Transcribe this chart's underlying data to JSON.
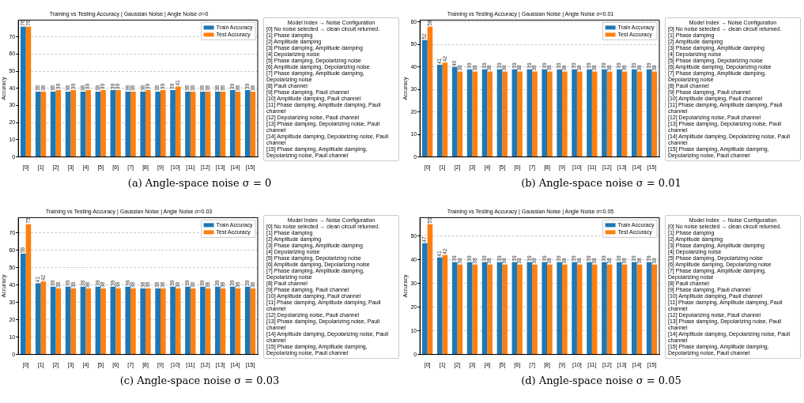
{
  "chart_data": [
    {
      "type": "bar",
      "title": "Training vs Testing Accuracy | Gaussian Noise | Angle Noise σ=0",
      "subtitle": "(a) Angle-space noise σ = 0",
      "ylabel": "Accuracy",
      "categories": [
        "[0]",
        "[1]",
        "[2]",
        "[3]",
        "[4]",
        "[5]",
        "[6]",
        "[7]",
        "[8]",
        "[9]",
        "[10]",
        "[11]",
        "[12]",
        "[13]",
        "[14]",
        "[15]"
      ],
      "series": [
        {
          "name": "Train Accuracy",
          "color": "#1f77b4",
          "values": [
            76,
            38,
            38,
            38,
            38,
            38,
            39,
            38,
            38,
            38,
            39,
            38,
            38,
            38,
            39,
            39
          ]
        },
        {
          "name": "Test Accuracy",
          "color": "#ff7f0e",
          "values": [
            76,
            38,
            39,
            39,
            39,
            39,
            39,
            38,
            39,
            39,
            41,
            38,
            38,
            38,
            38,
            38
          ]
        }
      ],
      "ylim": [
        0,
        79.8
      ],
      "yticks": [
        0,
        10,
        20,
        30,
        40,
        50,
        60,
        70
      ],
      "grid": "y",
      "legend": "top right",
      "data_labels": true,
      "annotations": [
        "Model Index → Noise Configuration",
        "[0] No noise selected → clean circuit returned.",
        "[1] Phase damping",
        "[2] Amplitude damping",
        "[3] Phase damping, Amplitude damping",
        "[4] Depolarizing noise",
        "[5] Phase damping, Depolarizing noise",
        "[6] Amplitude damping, Depolarizing noise",
        "[7] Phase damping, Amplitude damping, Depolarizing noise",
        "[8] Pauli channel",
        "[9] Phase damping, Pauli channel",
        "[10] Amplitude damping, Pauli channel",
        "[11] Phase damping, Amplitude damping, Pauli channel",
        "[12] Depolarizing noise, Pauli channel",
        "[13] Phase damping, Depolarizing noise, Pauli channel",
        "[14] Amplitude damping, Depolarizing noise, Pauli channel",
        "[15] Phase damping, Amplitude damping, Depolarizing noise, Pauli channel"
      ]
    },
    {
      "type": "bar",
      "title": "Training vs Testing Accuracy | Gaussian Noise | Angle Noise σ=0.01",
      "subtitle": "(b) Angle-space noise σ = 0.01",
      "ylabel": "Accuracy",
      "categories": [
        "[0]",
        "[1]",
        "[2]",
        "[3]",
        "[4]",
        "[5]",
        "[6]",
        "[7]",
        "[8]",
        "[9]",
        "[10]",
        "[11]",
        "[12]",
        "[13]",
        "[14]",
        "[15]"
      ],
      "series": [
        {
          "name": "Train Accuracy",
          "color": "#1f77b4",
          "values": [
            52,
            41,
            40,
            39,
            39,
            39,
            39,
            39,
            39,
            39,
            39,
            39,
            39,
            39,
            39,
            39
          ]
        },
        {
          "name": "Test Accuracy",
          "color": "#ff7f0e",
          "values": [
            58,
            42,
            38,
            38,
            38,
            38,
            38,
            38,
            38,
            38,
            38,
            38,
            38,
            38,
            38,
            38
          ]
        }
      ],
      "ylim": [
        0,
        60.9
      ],
      "yticks": [
        0,
        10,
        20,
        30,
        40,
        50,
        60
      ],
      "grid": "y",
      "legend": "top right",
      "data_labels": true,
      "annotations": [
        "Model Index → Noise Configuration",
        "[0] No noise selected → clean circuit returned.",
        "[1] Phase damping",
        "[2] Amplitude damping",
        "[3] Phase damping, Amplitude damping",
        "[4] Depolarizing noise",
        "[5] Phase damping, Depolarizing noise",
        "[6] Amplitude damping, Depolarizing noise",
        "[7] Phase damping, Amplitude damping, Depolarizing noise",
        "[8] Pauli channel",
        "[9] Phase damping, Pauli channel",
        "[10] Amplitude damping, Pauli channel",
        "[11] Phase damping, Amplitude damping, Pauli channel",
        "[12] Depolarizing noise, Pauli channel",
        "[13] Phase damping, Depolarizing noise, Pauli channel",
        "[14] Amplitude damping, Depolarizing noise, Pauli channel",
        "[15] Phase damping, Amplitude damping, Depolarizing noise, Pauli channel"
      ]
    },
    {
      "type": "bar",
      "title": "Training vs Testing Accuracy | Gaussian Noise | Angle Noise σ=0.03",
      "subtitle": "(c) Angle-space noise σ = 0.03",
      "ylabel": "Accuracy",
      "categories": [
        "[0]",
        "[1]",
        "[2]",
        "[3]",
        "[4]",
        "[5]",
        "[6]",
        "[7]",
        "[8]",
        "[9]",
        "[10]",
        "[11]",
        "[12]",
        "[13]",
        "[14]",
        "[15]"
      ],
      "series": [
        {
          "name": "Train Accuracy",
          "color": "#1f77b4",
          "values": [
            58,
            41,
            39,
            39,
            39,
            39,
            39,
            39,
            38,
            38,
            39,
            39,
            39,
            39,
            39,
            39
          ]
        },
        {
          "name": "Test Accuracy",
          "color": "#ff7f0e",
          "values": [
            75,
            42,
            38,
            38,
            38,
            38,
            38,
            38,
            38,
            38,
            38,
            38,
            38,
            38,
            38,
            38
          ]
        }
      ],
      "ylim": [
        0,
        78.75
      ],
      "yticks": [
        0,
        10,
        20,
        30,
        40,
        50,
        60,
        70
      ],
      "grid": "y",
      "legend": "top right",
      "data_labels": true,
      "annotations": [
        "Model Index → Noise Configuration",
        "[0] No noise selected → clean circuit returned.",
        "[1] Phase damping",
        "[2] Amplitude damping",
        "[3] Phase damping, Amplitude damping",
        "[4] Depolarizing noise",
        "[5] Phase damping, Depolarizing noise",
        "[6] Amplitude damping, Depolarizing noise",
        "[7] Phase damping, Amplitude damping, Depolarizing noise",
        "[8] Pauli channel",
        "[9] Phase damping, Pauli channel",
        "[10] Amplitude damping, Pauli channel",
        "[11] Phase damping, Amplitude damping, Pauli channel",
        "[12] Depolarizing noise, Pauli channel",
        "[13] Phase damping, Depolarizing noise, Pauli channel",
        "[14] Amplitude damping, Depolarizing noise, Pauli channel",
        "[15] Phase damping, Amplitude damping, Depolarizing noise, Pauli channel"
      ]
    },
    {
      "type": "bar",
      "title": "Training vs Testing Accuracy | Gaussian Noise | Angle Noise σ=0.05",
      "subtitle": "(d) Angle-space noise σ = 0.05",
      "ylabel": "Accuracy",
      "categories": [
        "[0]",
        "[1]",
        "[2]",
        "[3]",
        "[4]",
        "[5]",
        "[6]",
        "[7]",
        "[8]",
        "[9]",
        "[10]",
        "[11]",
        "[12]",
        "[13]",
        "[14]",
        "[15]"
      ],
      "series": [
        {
          "name": "Train Accuracy",
          "color": "#1f77b4",
          "values": [
            47,
            41,
            39,
            39,
            39,
            39,
            39,
            39,
            39,
            39,
            39,
            39,
            39,
            39,
            39,
            39
          ]
        },
        {
          "name": "Test Accuracy",
          "color": "#ff7f0e",
          "values": [
            55,
            42,
            38,
            38,
            38,
            38,
            38,
            38,
            38,
            38,
            38,
            38,
            38,
            38,
            38,
            38
          ]
        }
      ],
      "ylim": [
        0,
        57.75
      ],
      "yticks": [
        0,
        10,
        20,
        30,
        40,
        50
      ],
      "grid": "y",
      "legend": "top right",
      "data_labels": true,
      "annotations": [
        "Model Index → Noise Configuration",
        "[0] No noise selected → clean circuit returned.",
        "[1] Phase damping",
        "[2] Amplitude damping",
        "[3] Phase damping, Amplitude damping",
        "[4] Depolarizing noise",
        "[5] Phase damping, Depolarizing noise",
        "[6] Amplitude damping, Depolarizing noise",
        "[7] Phase damping, Amplitude damping, Depolarizing noise",
        "[8] Pauli channel",
        "[9] Phase damping, Pauli channel",
        "[10] Amplitude damping, Pauli channel",
        "[11] Phase damping, Amplitude damping, Pauli channel",
        "[12] Depolarizing noise, Pauli channel",
        "[13] Phase damping, Depolarizing noise, Pauli channel",
        "[14] Amplitude damping, Depolarizing noise, Pauli channel",
        "[15] Phase damping, Amplitude damping, Depolarizing noise, Pauli channel"
      ]
    }
  ]
}
